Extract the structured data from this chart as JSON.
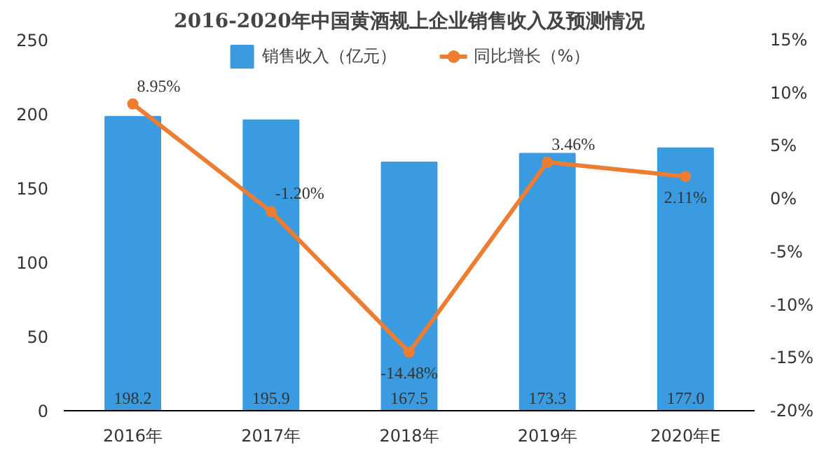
{
  "chart_data": {
    "type": "bar",
    "title": "2016-2020年中国黄酒规上企业销售收入及预测情况",
    "categories": [
      "2016年",
      "2017年",
      "2018年",
      "2019年",
      "2020年E"
    ],
    "series": [
      {
        "name": "销售收入（亿元）",
        "color": "#3a9be0",
        "values": [
          198.2,
          195.9,
          167.5,
          173.3,
          177.0
        ],
        "value_labels": [
          "198.2",
          "195.9",
          "167.5",
          "173.3",
          "177.0"
        ]
      },
      {
        "name": "同比增长（%）",
        "type": "line",
        "axis": "y2",
        "color": "#ed7d31",
        "marker": "circle",
        "values": [
          8.95,
          -1.2,
          -14.48,
          3.46,
          2.11
        ],
        "value_labels": [
          "8.95%",
          "-1.20%",
          "-14.48%",
          "3.46%",
          "2.11%"
        ]
      }
    ],
    "ylim": [
      0,
      250
    ],
    "yticks": [
      0,
      50,
      100,
      150,
      200,
      250
    ],
    "y2lim": [
      -20,
      15
    ],
    "y2ticks": [
      {
        "value": -20,
        "label": "-20%"
      },
      {
        "value": -15,
        "label": "-15%"
      },
      {
        "value": -10,
        "label": "-10%"
      },
      {
        "value": -5,
        "label": "-5%"
      },
      {
        "value": 0,
        "label": "0%"
      },
      {
        "value": 5,
        "label": "5%"
      },
      {
        "value": 10,
        "label": "10%"
      },
      {
        "value": 15,
        "label": "15%"
      }
    ],
    "grid": false,
    "legend": "top"
  }
}
